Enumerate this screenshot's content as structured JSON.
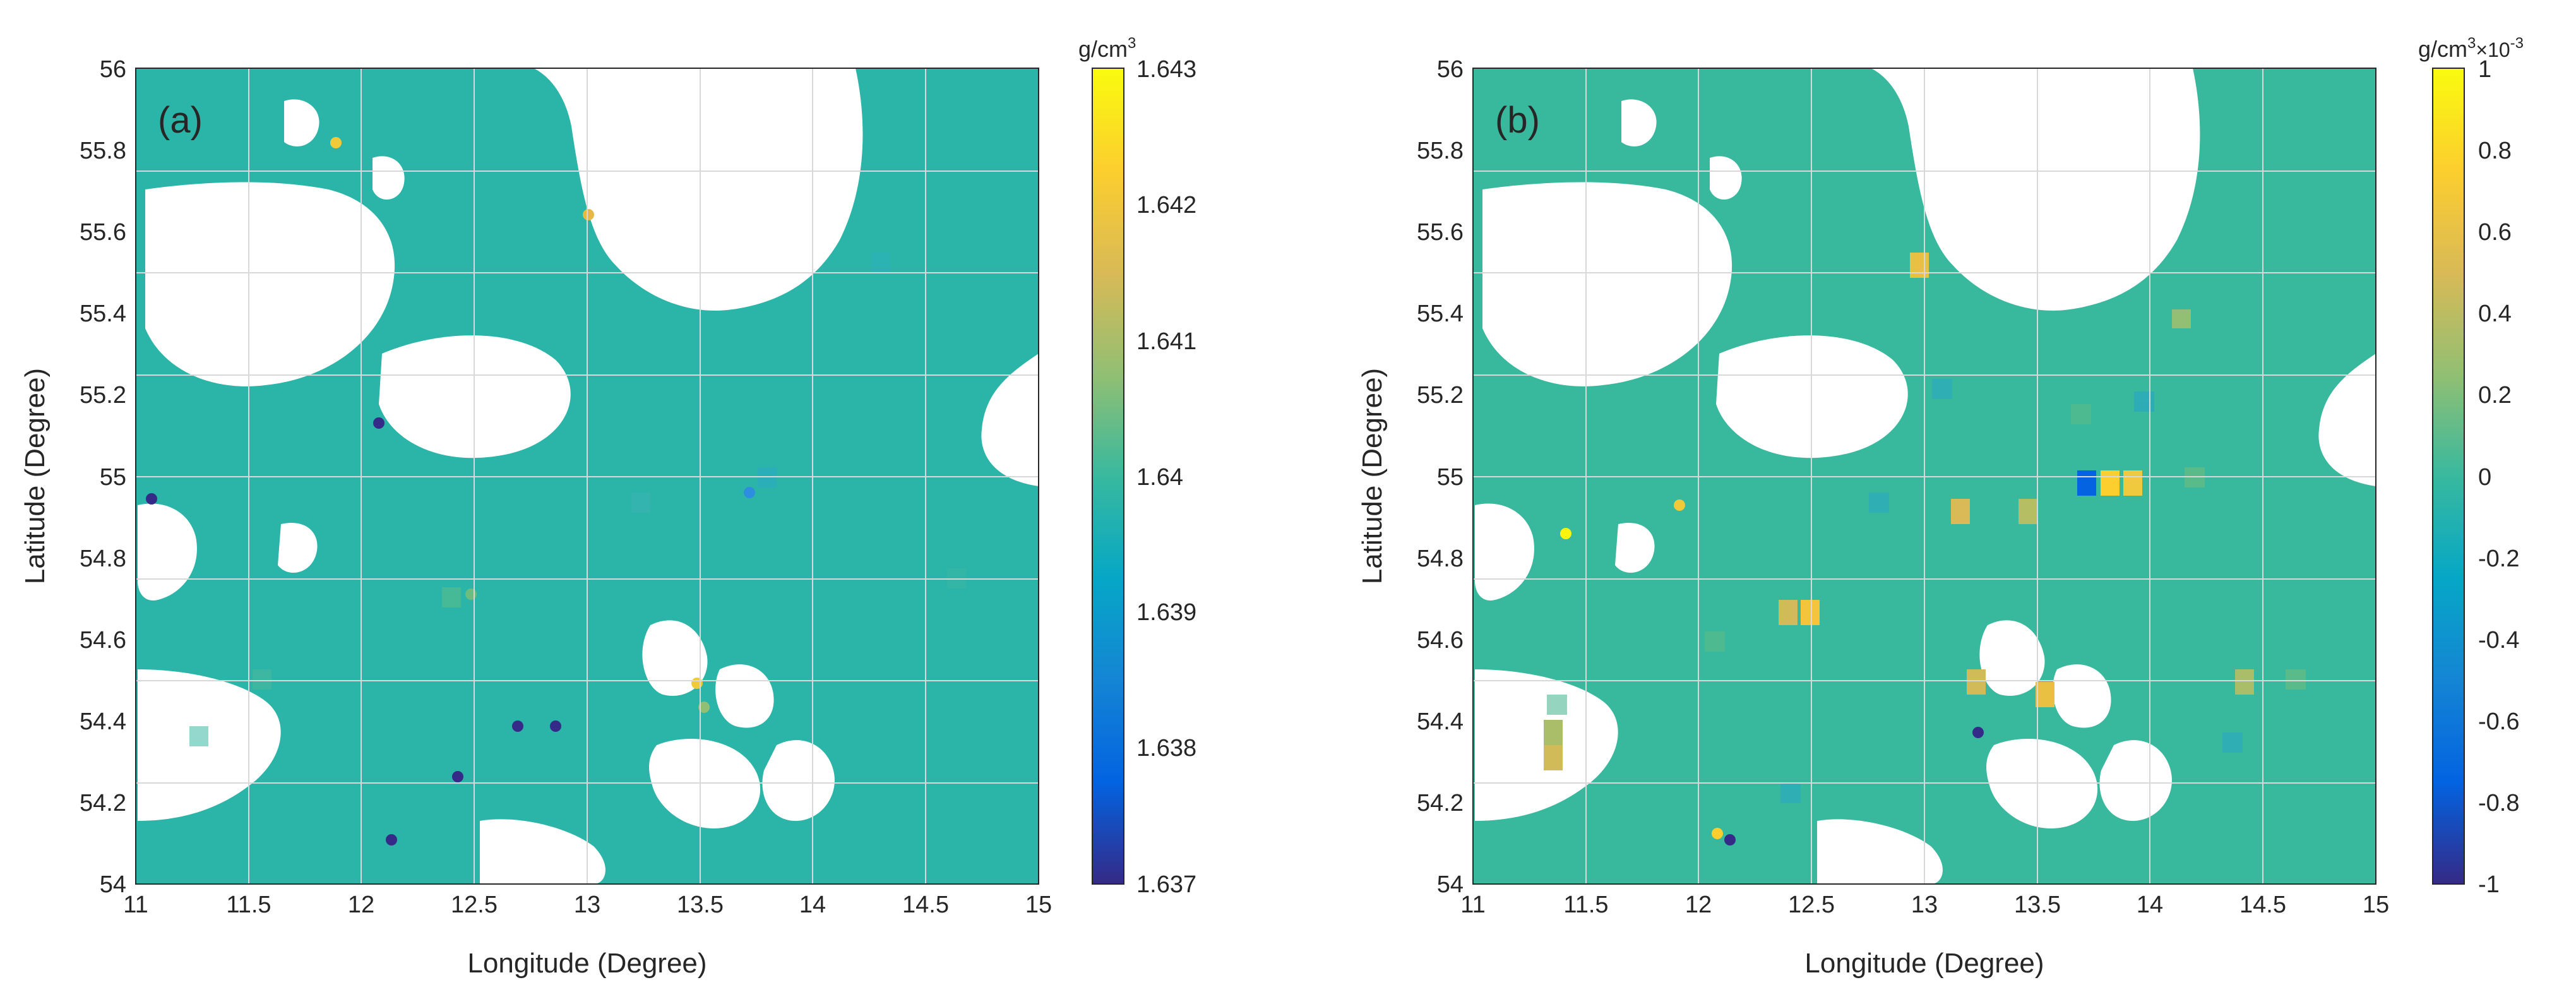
{
  "chart_data": [
    {
      "type": "heatmap",
      "panel_label": "(a)",
      "xlabel": "Longitude (Degree)",
      "ylabel": "Latitude (Degree)",
      "xlim": [
        11,
        15
      ],
      "ylim": [
        54,
        56
      ],
      "x_ticks": [
        "11",
        "11.5",
        "12",
        "12.5",
        "13",
        "13.5",
        "14",
        "14.5",
        "15"
      ],
      "y_ticks": [
        "54",
        "54.2",
        "54.4",
        "54.6",
        "54.8",
        "55",
        "55.2",
        "55.4",
        "55.6",
        "55.8",
        "56"
      ],
      "grid": true,
      "colorbar": {
        "unit": "g/cm",
        "unit_sup": "3",
        "multiplier": "",
        "multiplier_exp": "",
        "limits": [
          1.637,
          1.643
        ],
        "ticks": [
          "1.637",
          "1.638",
          "1.639",
          "1.64",
          "1.641",
          "1.642",
          "1.643"
        ],
        "colormap": "parula"
      },
      "typical_value": 1.64,
      "notable_points": [
        {
          "lon": 12.48,
          "lat": 54.68,
          "value": 1.6405
        },
        {
          "lon": 13.72,
          "lat": 54.98,
          "value": 1.6385
        },
        {
          "lon": 13.28,
          "lat": 54.48,
          "value": 1.6425
        },
        {
          "lon": 12.42,
          "lat": 54.26,
          "value": 1.637
        },
        {
          "lon": 12.68,
          "lat": 54.38,
          "value": 1.637
        },
        {
          "lon": 12.95,
          "lat": 54.38,
          "value": 1.637
        },
        {
          "lon": 13.0,
          "lat": 55.64,
          "value": 1.6422
        },
        {
          "lon": 12.1,
          "lat": 55.12,
          "value": 1.637
        },
        {
          "lon": 11.05,
          "lat": 54.94,
          "value": 1.637
        },
        {
          "lon": 11.9,
          "lat": 55.78,
          "value": 1.6425
        },
        {
          "lon": 13.5,
          "lat": 54.43,
          "value": 1.6415
        },
        {
          "lon": 12.14,
          "lat": 54.11,
          "value": 1.637
        }
      ]
    },
    {
      "type": "heatmap",
      "panel_label": "(b)",
      "xlabel": "Longitude (Degree)",
      "ylabel": "Latitude (Degree)",
      "xlim": [
        11,
        15
      ],
      "ylim": [
        54,
        56
      ],
      "x_ticks": [
        "11",
        "11.5",
        "12",
        "12.5",
        "13",
        "13.5",
        "14",
        "14.5",
        "15"
      ],
      "y_ticks": [
        "54",
        "54.2",
        "54.4",
        "54.6",
        "54.8",
        "55",
        "55.2",
        "55.4",
        "55.6",
        "55.8",
        "56"
      ],
      "grid": true,
      "colorbar": {
        "unit": "g/cm",
        "unit_sup": "3",
        "multiplier": "×10",
        "multiplier_exp": "-3",
        "limits": [
          -1,
          1
        ],
        "ticks": [
          "-1",
          "-0.8",
          "-0.6",
          "-0.4",
          "-0.2",
          "0",
          "0.2",
          "0.4",
          "0.6",
          "0.8",
          "1"
        ],
        "colormap": "parula"
      },
      "typical_value": 0,
      "notable_points": [
        {
          "lon": 13.72,
          "lat": 54.98,
          "value": -0.8
        },
        {
          "lon": 13.82,
          "lat": 54.98,
          "value": 0.8
        },
        {
          "lon": 13.92,
          "lat": 54.98,
          "value": 0.7
        },
        {
          "lon": 13.15,
          "lat": 54.92,
          "value": 0.6
        },
        {
          "lon": 13.45,
          "lat": 54.92,
          "value": 0.4
        },
        {
          "lon": 12.52,
          "lat": 54.67,
          "value": 0.8
        },
        {
          "lon": 12.42,
          "lat": 54.67,
          "value": 0.5
        },
        {
          "lon": 11.35,
          "lat": 54.28,
          "value": 0.5
        },
        {
          "lon": 11.35,
          "lat": 54.38,
          "value": 0.3
        },
        {
          "lon": 13.5,
          "lat": 54.44,
          "value": 0.7
        },
        {
          "lon": 13.2,
          "lat": 54.47,
          "value": 0.5
        },
        {
          "lon": 13.03,
          "lat": 55.45,
          "value": 0.7
        },
        {
          "lon": 12.1,
          "lat": 54.1,
          "value": 0.8
        },
        {
          "lon": 12.14,
          "lat": 54.1,
          "value": -1
        },
        {
          "lon": 13.8,
          "lat": 55.2,
          "value": 0.2
        },
        {
          "lon": 14.3,
          "lat": 54.45,
          "value": 0.3
        },
        {
          "lon": 13.2,
          "lat": 54.38,
          "value": -1
        },
        {
          "lon": 11.2,
          "lat": 54.85,
          "value": 0.9
        },
        {
          "lon": 11.85,
          "lat": 54.95,
          "value": 0.8
        }
      ]
    }
  ]
}
